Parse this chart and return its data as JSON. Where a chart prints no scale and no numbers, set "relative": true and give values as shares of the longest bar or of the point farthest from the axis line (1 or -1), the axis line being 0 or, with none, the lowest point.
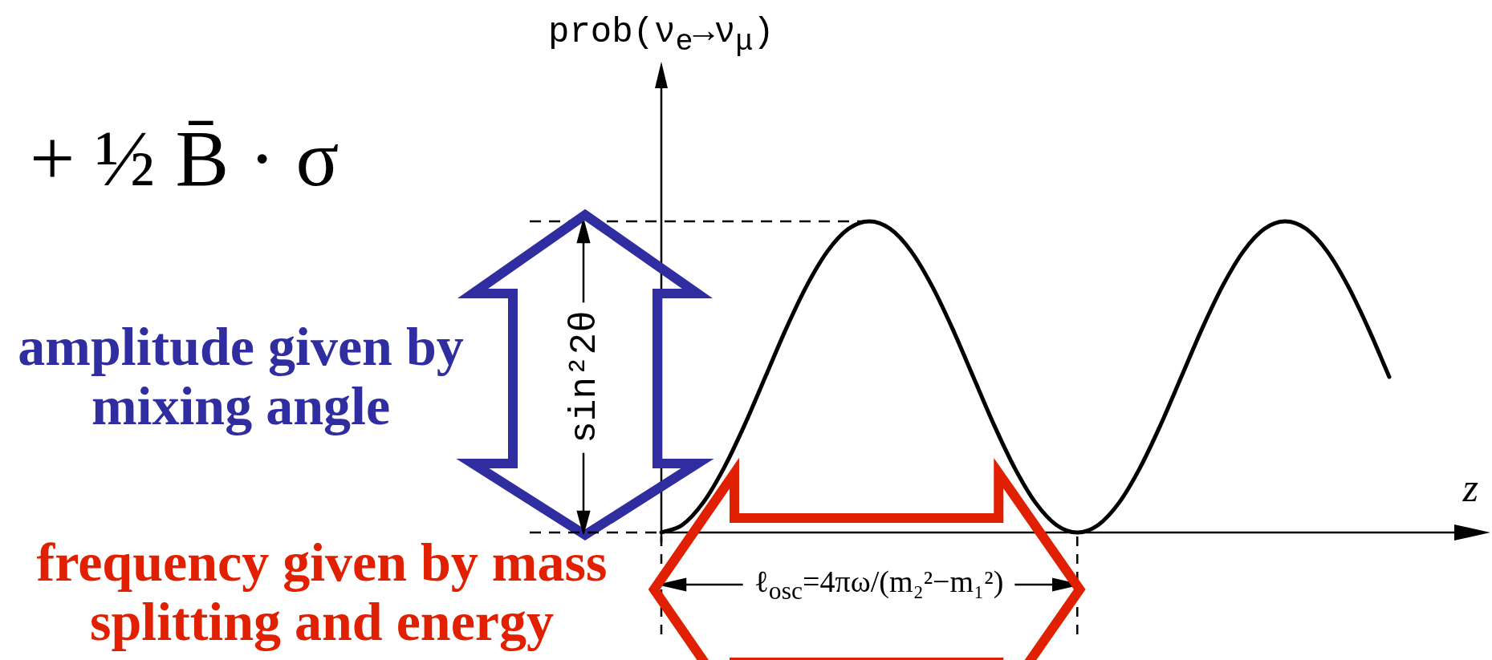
{
  "chart_data": {
    "type": "line",
    "relative": true,
    "xlabel": "z",
    "ylabel": "prob(ν$_{e}$→ν$_{μ}$)",
    "marker": "none",
    "categories": [
      null,
      null,
      null,
      null,
      null,
      null,
      null,
      null,
      null,
      null,
      null,
      null,
      null,
      null,
      null,
      null,
      null,
      null,
      null,
      null,
      null,
      null,
      null,
      null,
      null,
      null,
      null,
      null,
      null,
      null,
      null,
      null,
      null,
      null,
      null,
      null
    ],
    "series": [
      {
        "color": "#000000",
        "values": [
          0,
          0.024,
          0.095,
          0.206,
          0.345,
          0.5,
          0.655,
          0.794,
          0.905,
          0.976,
          1,
          0.976,
          0.905,
          0.794,
          0.655,
          0.5,
          0.345,
          0.206,
          0.095,
          0.024,
          0,
          0.024,
          0.095,
          0.206,
          0.345,
          0.5,
          0.655,
          0.794,
          0.905,
          0.976,
          1,
          0.976,
          0.905,
          0.794,
          0.655,
          0.5
        ]
      }
    ],
    "ref_lines": [
      {
        "axis": "y",
        "value": 1,
        "line_style": "dashed"
      }
    ],
    "annotations": [
      "+ ½ B̄ · σ",
      "sin²2θ",
      "ℓ$_{osc}$=4πω/(m₂²−m₁²)",
      "amplitude given by mixing angle",
      "frequency given by mass splitting and energy"
    ]
  }
}
